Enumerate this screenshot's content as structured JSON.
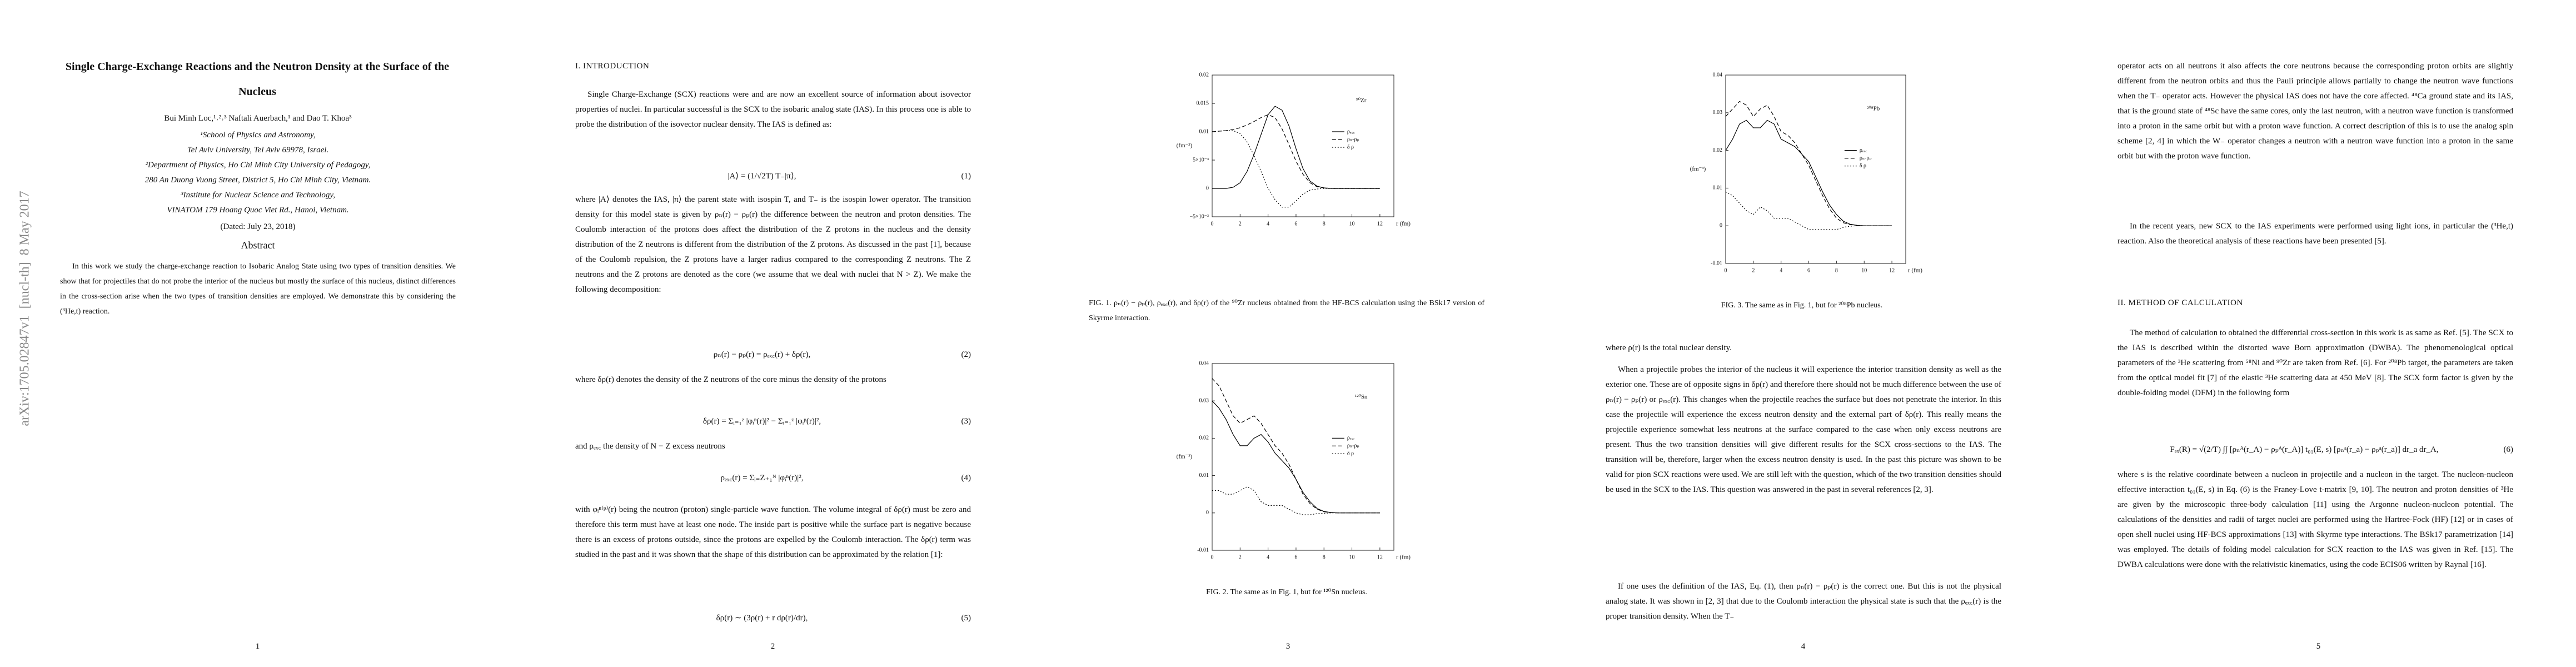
{
  "pages": [
    {
      "arxiv_stamp": "arXiv:1705.02847v1  [nucl-th]  8 May 2017",
      "title": "Single Charge-Exchange Reactions and the Neutron Density at the Surface of the Nucleus",
      "authors": "Bui Minh Loc,¹˒²˒³ Naftali Auerbach,¹ and Dao T. Khoa³",
      "affiliations": [
        "¹School of Physics and Astronomy,",
        "Tel Aviv University, Tel Aviv 69978, Israel.",
        "²Department of Physics, Ho Chi Minh City University of Pedagogy,",
        "280 An Duong Vuong Street, District 5, Ho Chi Minh City, Vietnam.",
        "³Institute for Nuclear Science and Technology,",
        "VINATOM 179 Hoang Quoc Viet Rd., Hanoi, Vietnam."
      ],
      "dated": "(Dated: July 23, 2018)",
      "abstract_heading": "Abstract",
      "abstract": "In this work we study the charge-exchange reaction to Isobaric Analog State using two types of transition densities. We show that for projectiles that do not probe the interior of the nucleus but mostly the surface of this nucleus, distinct differences in the cross-section arise when the two types of transition densities are employed. We demonstrate this by considering the (³He,t) reaction.",
      "page_number": "1"
    },
    {
      "section_heading": "I.  INTRODUCTION",
      "paragraphs": [
        "Single Charge-Exchange (SCX) reactions were and are now an excellent source of information about isovector properties of nuclei. In particular successful is the SCX to the isobaric analog state (IAS). In this process one is able to probe the distribution of the isovector nuclear density. The IAS is defined as:",
        "where |A⟩ denotes the IAS, |π⟩ the parent state with isospin T, and T₋ is the isospin lower operator. The transition density for this model state is given by ρₙ(r) − ρₚ(r) the difference between the neutron and proton densities. The Coulomb interaction of the protons does affect the distribution of the Z protons in the nucleus and the density distribution of the Z neutrons is different from the distribution of the Z protons. As discussed in the past [1], because of the Coulomb repulsion, the Z protons have a larger radius compared to the corresponding Z neutrons. The Z neutrons and the Z protons are denoted as the core (we assume that we deal with nuclei that N > Z). We make the following decomposition:",
        "where δρ(r) denotes the density of the Z neutrons of the core minus the density of the protons",
        "and ρₑₓ꜀ the density of N − Z excess neutrons",
        "with φᵢⁿ⁽ᵖ⁾(r) being the neutron (proton) single-particle wave function. The volume integral of δρ(r) must be zero and therefore this term must have at least one node. The inside part is positive while the surface part is negative because there is an excess of protons outside, since the protons are expelled by the Coulomb interaction. The δρ(r) term was studied in the past and it was shown that the shape of this distribution can be approximated by the relation [1]:"
      ],
      "equations": [
        {
          "formula": "|A⟩ = (1/√2T) T₋|π⟩,",
          "number": "(1)"
        },
        {
          "formula": "ρₙ(r) − ρₚ(r) = ρₑₓ꜀(r) + δρ(r),",
          "number": "(2)"
        },
        {
          "formula": "δρ(r) = Σᵢ₌₁ᶻ |φᵢⁿ(r)|² − Σᵢ₌₁ᶻ |φᵢᵖ(r)|²,",
          "number": "(3)"
        },
        {
          "formula": "ρₑₓ꜀(r) = Σᵢ₌Z₊₁ᴺ |φᵢⁿ(r)|²,",
          "number": "(4)"
        },
        {
          "formula": "δρ(r) ∼ (3ρ(r) + r dρ(r)/dr),",
          "number": "(5)"
        }
      ],
      "page_number": "2"
    },
    {
      "captions": [
        "FIG. 1.  ρₙ(r) − ρₚ(r), ρₑₓ꜀(r), and δρ(r) of the ⁹⁰Zr nucleus obtained from the HF-BCS calculation using the BSk17 version of Skyrme interaction.",
        "FIG. 2. The same as in Fig. 1, but for ¹²⁰Sn nucleus."
      ],
      "page_number": "3"
    },
    {
      "captions": [
        "FIG. 3. The same as in Fig. 1, but for ²⁰⁸Pb nucleus."
      ],
      "paragraphs": [
        "where ρ(r) is the total nuclear density.",
        "When a projectile probes the interior of the nucleus it will experience the interior transition density as well as the exterior one. These are of opposite signs in δρ(r) and therefore there should not be much difference between the use of ρₙ(r) − ρₚ(r) or ρₑₓ꜀(r). This changes when the projectile reaches the surface but does not penetrate the interior. In this case the projectile will experience the excess neutron density and the external part of δρ(r). This really means the projectile experience somewhat less neutrons at the surface compared to the case when only excess neutrons are present. Thus the two transition densities will give different results for the SCX cross-sections to the IAS. The transition will be, therefore, larger when the excess neutron density is used. In the past this picture was shown to be valid for pion SCX reactions were used. We are still left with the question, which of the two transition densities should be used in the SCX to the IAS. This question was answered in the past in several references [2, 3].",
        "If one uses the definition of the IAS, Eq. (1), then ρₙ(r) − ρₚ(r) is the correct one. But this is not the physical analog state. It was shown in [2, 3] that due to the Coulomb interaction the physical state is such that the ρₑₓ꜀(r) is the proper transition density. When the T₋"
      ],
      "page_number": "4"
    },
    {
      "paragraphs": [
        "operator acts on all neutrons it also affects the core neutrons because the corresponding proton orbits are slightly different from the neutron orbits and thus the Pauli principle allows partially to change the neutron wave functions when the T₋ operator acts. However the physical IAS does not have the core affected. ⁴⁸Ca ground state and its IAS, that is the ground state of ⁴⁸Sc have the same cores, only the last neutron, with a neutron wave function is transformed into a proton in the same orbit but with a proton wave function. A correct description of this is to use the analog spin scheme [2, 4] in which the W₋ operator changes a neutron with a neutron wave function into a proton in the same orbit but with the proton wave function.",
        "In the recent years, new SCX to the IAS experiments were performed using light ions, in particular the (³He,t) reaction. Also the theoretical analysis of these reactions have been presented [5].",
        "The method of calculation to obtained the differential cross-section in this work is as same as Ref. [5]. The SCX to the IAS is described within the distorted wave Born approximation (DWBA). The phenomenological optical parameters of the ³He scattering from ⁵⁸Ni and ⁹⁰Zr are taken from Ref. [6]. For ²⁰⁸Pb target, the parameters are taken from the optical model fit [7] of the elastic ³He scattering data at 450 MeV [8]. The SCX form factor is given by the double-folding model (DFM) in the following form",
        "where s is the relative coordinate between a nucleon in projectile and a nucleon in the target. The nucleon-nucleon effective interaction t₀₁(E, s) in Eq. (6) is the Franey-Love t-matrix [9, 10]. The neutron and proton densities of ³He are given by the microscopic three-body calculation [11] using the Argonne nucleon-nucleon potential. The calculations of the densities and radii of target nuclei are performed using the Hartree-Fock (HF) [12] or in cases of open shell nuclei using HF-BCS approximations [13] with Skyrme type interactions. The BSk17 parametrization [14] was employed. The details of folding model calculation for SCX reaction to the IAS was given in Ref. [15]. The DWBA calculations were done with the relativistic kinematics, using the code ECIS06 written by Raynal [16]."
      ],
      "section_heading": "II.  METHOD OF CALCULATION",
      "equations": [
        {
          "formula": "Fₑₓ(R) = √(2/T) ∫∫ [ρₙᴬ(r_A) − ρₚᴬ(r_A)] t₀₁(E, s) [ρₙᵃ(r_a) − ρₚᵃ(r_a)] dr_a dr_A,",
          "number": "(6)"
        }
      ],
      "page_number": "5"
    }
  ],
  "chart_data": [
    {
      "type": "line",
      "title": "⁹⁰Zr",
      "x_label": "r (fm)",
      "y_label": "(fm⁻³)",
      "x": [
        0,
        0.5,
        1,
        1.5,
        2,
        2.5,
        3,
        3.5,
        4,
        4.5,
        5,
        5.5,
        6,
        6.5,
        7,
        7.5,
        8,
        8.5,
        9,
        9.5,
        10,
        10.5,
        11,
        11.5,
        12
      ],
      "xlim": [
        0,
        13
      ],
      "xticks": [
        0,
        2,
        4,
        6,
        8,
        10,
        12
      ],
      "ylim": [
        -0.005,
        0.02
      ],
      "yticks": [
        {
          "value": -0.005,
          "label": "−5×10⁻³"
        },
        0,
        {
          "value": 0.005,
          "label": "5×10⁻³"
        },
        0.01,
        0.015,
        0.02
      ],
      "legend": "right",
      "series": [
        {
          "name": "ρₑₓ꜀",
          "color": "#000000",
          "style": "solid",
          "values": [
            0,
            0,
            0,
            0.0002,
            0.001,
            0.003,
            0.006,
            0.0095,
            0.013,
            0.0145,
            0.0138,
            0.011,
            0.007,
            0.0035,
            0.0013,
            0.0004,
            0.0001,
            0,
            0,
            0,
            0,
            0,
            0,
            0,
            0
          ]
        },
        {
          "name": "ρₙ-ρₚ",
          "color": "#000000",
          "style": "dashed",
          "values": [
            0.01,
            0.0101,
            0.0102,
            0.0104,
            0.0107,
            0.0112,
            0.0118,
            0.0125,
            0.013,
            0.0125,
            0.0105,
            0.0077,
            0.0048,
            0.0025,
            0.001,
            0.0003,
            0.0001,
            0,
            0,
            0,
            0,
            0,
            0,
            0,
            0
          ]
        },
        {
          "name": "δ ρ",
          "color": "#000000",
          "style": "dotted",
          "values": [
            0.01,
            0.0101,
            0.0102,
            0.0102,
            0.0097,
            0.0082,
            0.0058,
            0.003,
            0,
            -0.002,
            -0.0033,
            -0.0033,
            -0.0022,
            -0.001,
            -0.0003,
            -0.0001,
            0,
            0,
            0,
            0,
            0,
            0,
            0,
            0,
            0
          ]
        }
      ]
    },
    {
      "type": "line",
      "title": "¹²⁰Sn",
      "x_label": "r (fm)",
      "y_label": "(fm⁻³)",
      "x": [
        0,
        0.5,
        1,
        1.5,
        2,
        2.5,
        3,
        3.5,
        4,
        4.5,
        5,
        5.5,
        6,
        6.5,
        7,
        7.5,
        8,
        8.5,
        9,
        9.5,
        10,
        10.5,
        11,
        11.5,
        12
      ],
      "xlim": [
        0,
        13
      ],
      "xticks": [
        0,
        2,
        4,
        6,
        8,
        10,
        12
      ],
      "ylim": [
        -0.01,
        0.04
      ],
      "yticks": [
        -0.01,
        0,
        0.01,
        0.02,
        0.03,
        0.04
      ],
      "legend": "right",
      "series": [
        {
          "name": "ρₑₓ꜀",
          "color": "#000000",
          "style": "solid",
          "values": [
            0.03,
            0.028,
            0.025,
            0.021,
            0.018,
            0.018,
            0.02,
            0.021,
            0.019,
            0.016,
            0.014,
            0.012,
            0.009,
            0.0055,
            0.003,
            0.0012,
            0.0004,
            0.0001,
            0,
            0,
            0,
            0,
            0,
            0,
            0
          ]
        },
        {
          "name": "ρₙ-ρₚ",
          "color": "#000000",
          "style": "dashed",
          "values": [
            0.036,
            0.034,
            0.03,
            0.026,
            0.024,
            0.025,
            0.026,
            0.024,
            0.021,
            0.018,
            0.016,
            0.013,
            0.009,
            0.005,
            0.0025,
            0.001,
            0.0003,
            0.0001,
            0,
            0,
            0,
            0,
            0,
            0,
            0
          ]
        },
        {
          "name": "δ ρ",
          "color": "#000000",
          "style": "dotted",
          "values": [
            0.006,
            0.006,
            0.005,
            0.005,
            0.006,
            0.007,
            0.006,
            0.003,
            0.002,
            0.002,
            0.002,
            0.001,
            0,
            -0.0005,
            -0.0005,
            -0.0002,
            -0.0001,
            0,
            0,
            0,
            0,
            0,
            0,
            0,
            0
          ]
        }
      ]
    },
    {
      "type": "line",
      "title": "²⁰⁸Pb",
      "x_label": "r (fm)",
      "y_label": "(fm⁻³)",
      "x": [
        0,
        0.5,
        1,
        1.5,
        2,
        2.5,
        3,
        3.5,
        4,
        4.5,
        5,
        5.5,
        6,
        6.5,
        7,
        7.5,
        8,
        8.5,
        9,
        9.5,
        10,
        10.5,
        11,
        11.5,
        12
      ],
      "xlim": [
        0,
        13
      ],
      "xticks": [
        0,
        2,
        4,
        6,
        8,
        10,
        12
      ],
      "ylim": [
        -0.01,
        0.04
      ],
      "yticks": [
        -0.01,
        0,
        0.01,
        0.02,
        0.03,
        0.04
      ],
      "legend": "right",
      "series": [
        {
          "name": "ρₑₓ꜀",
          "color": "#000000",
          "style": "solid",
          "values": [
            0.02,
            0.023,
            0.027,
            0.028,
            0.026,
            0.026,
            0.028,
            0.027,
            0.023,
            0.022,
            0.021,
            0.019,
            0.017,
            0.013,
            0.009,
            0.0055,
            0.003,
            0.0012,
            0.0004,
            0.0001,
            0,
            0,
            0,
            0,
            0
          ]
        },
        {
          "name": "ρₙ-ρₚ",
          "color": "#000000",
          "style": "dashed",
          "values": [
            0.029,
            0.031,
            0.033,
            0.032,
            0.029,
            0.031,
            0.032,
            0.029,
            0.025,
            0.024,
            0.022,
            0.019,
            0.016,
            0.012,
            0.008,
            0.0045,
            0.002,
            0.0008,
            0.0003,
            0.0001,
            0,
            0,
            0,
            0,
            0
          ]
        },
        {
          "name": "δ ρ",
          "color": "#000000",
          "style": "dotted",
          "values": [
            0.009,
            0.008,
            0.006,
            0.004,
            0.003,
            0.005,
            0.004,
            0.002,
            0.002,
            0.002,
            0.001,
            0,
            -0.001,
            -0.001,
            -0.001,
            -0.001,
            -0.001,
            -0.0004,
            -0.0001,
            0,
            0,
            0,
            0,
            0,
            0
          ]
        }
      ]
    }
  ]
}
